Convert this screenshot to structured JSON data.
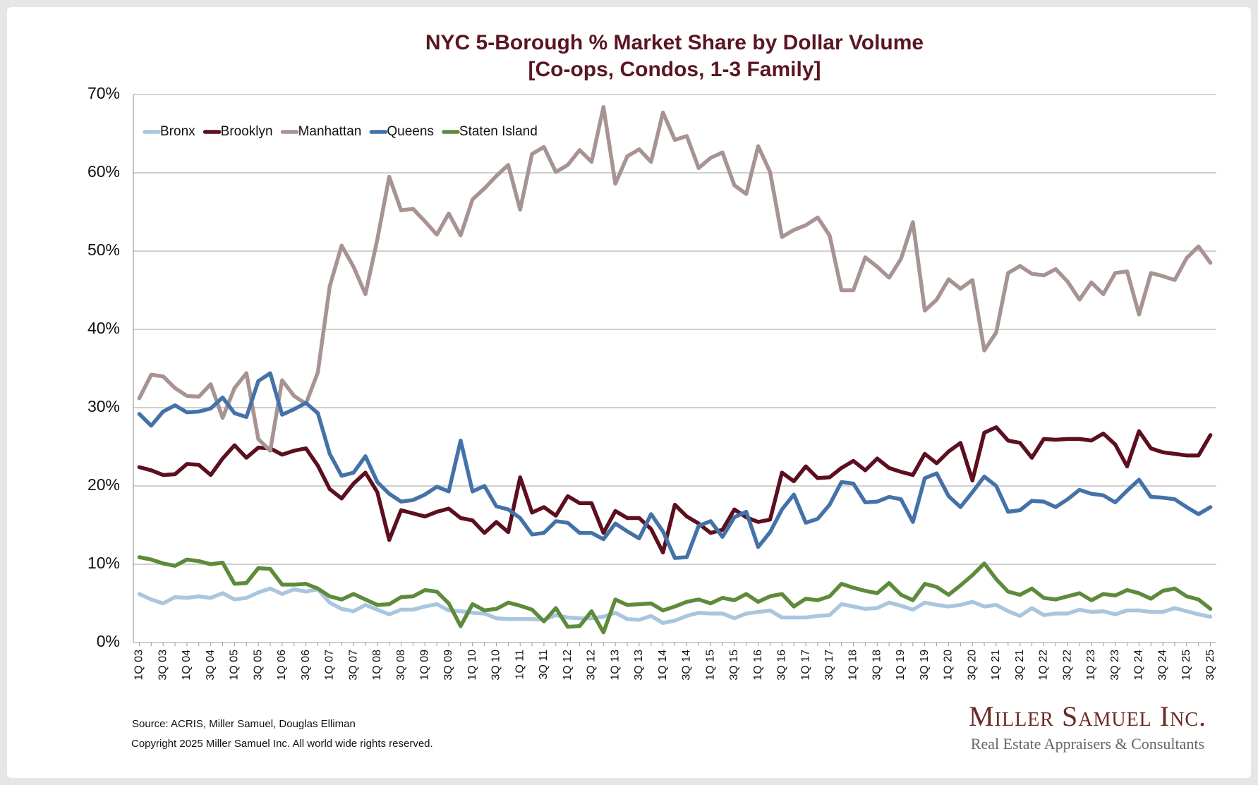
{
  "chart_data": {
    "type": "line",
    "title": "NYC 5-Borough % Market Share by Dollar Volume",
    "subtitle": "[Co-ops, Condos, 1-3 Family]",
    "categories": [
      "1Q 03",
      null,
      "3Q 03",
      null,
      "1Q 04",
      null,
      "3Q 04",
      null,
      "1Q 05",
      null,
      "3Q 05",
      null,
      "1Q 06",
      null,
      "3Q 06",
      null,
      "1Q 07",
      null,
      "3Q 07",
      null,
      "1Q 08",
      null,
      "3Q 08",
      null,
      "1Q 09",
      null,
      "3Q 09",
      null,
      "1Q 10",
      null,
      "3Q 10",
      null,
      "1Q 11",
      null,
      "3Q 11",
      null,
      "1Q 12",
      null,
      "3Q 12",
      null,
      "1Q 13",
      null,
      "3Q 13",
      null,
      "1Q 14",
      null,
      "3Q 14",
      null,
      "1Q 15",
      null,
      "3Q 15",
      null,
      "1Q 16",
      null,
      "3Q 16",
      null,
      "1Q 17",
      null,
      "3Q 17",
      null,
      "1Q 18",
      null,
      "3Q 18",
      null,
      "1Q 19",
      null,
      "3Q 19",
      null,
      "1Q 20",
      null,
      "3Q 20",
      null,
      "1Q 21",
      null,
      "3Q 21",
      null,
      "1Q 22",
      null,
      "3Q 22",
      null,
      "1Q 23",
      null,
      "3Q 23",
      null,
      "1Q 24",
      null,
      "3Q 24",
      null,
      "1Q 25",
      null,
      "3Q 25"
    ],
    "series": [
      {
        "name": "Bronx",
        "color": "#a9c6de",
        "values": [
          6.2,
          5.5,
          5.0,
          5.8,
          5.7,
          5.9,
          5.7,
          6.3,
          5.5,
          5.7,
          6.4,
          6.9,
          6.2,
          6.8,
          6.5,
          6.8,
          5.1,
          4.3,
          4.0,
          4.8,
          4.2,
          3.6,
          4.2,
          4.2,
          4.6,
          4.9,
          4.1,
          4.0,
          3.8,
          3.7,
          3.1,
          3.0,
          3.0,
          3.0,
          2.9,
          3.5,
          3.2,
          3.1,
          3.1,
          3.3,
          3.8,
          3.0,
          2.9,
          3.4,
          2.5,
          2.8,
          3.4,
          3.8,
          3.7,
          3.7,
          3.1,
          3.7,
          3.9,
          4.1,
          3.2,
          3.2,
          3.2,
          3.4,
          3.5,
          4.9,
          4.6,
          4.3,
          4.4,
          5.1,
          4.7,
          4.2,
          5.1,
          4.8,
          4.6,
          4.8,
          5.2,
          4.6,
          4.8,
          4.0,
          3.4,
          4.4,
          3.5,
          3.7,
          3.7,
          4.2,
          3.9,
          4.0,
          3.6,
          4.1,
          4.1,
          3.9,
          3.9,
          4.4,
          4.0,
          3.6,
          3.3
        ]
      },
      {
        "name": "Brooklyn",
        "color": "#5c0f1e",
        "values": [
          22.4,
          22.0,
          21.4,
          21.5,
          22.8,
          22.7,
          21.4,
          23.5,
          25.2,
          23.6,
          24.9,
          24.8,
          24.0,
          24.5,
          24.8,
          22.6,
          19.6,
          18.4,
          20.3,
          21.7,
          19.2,
          13.1,
          16.9,
          16.5,
          16.1,
          16.7,
          17.1,
          15.9,
          15.6,
          14.0,
          15.4,
          14.1,
          21.1,
          16.6,
          17.3,
          16.2,
          18.7,
          17.8,
          17.8,
          14.0,
          16.8,
          15.9,
          15.9,
          14.5,
          11.5,
          17.6,
          16.1,
          15.2,
          14.0,
          14.4,
          17.0,
          16.0,
          15.4,
          15.7,
          21.7,
          20.6,
          22.5,
          21.0,
          21.1,
          22.3,
          23.2,
          22.0,
          23.5,
          22.3,
          21.8,
          21.4,
          24.1,
          22.9,
          24.4,
          25.5,
          20.7,
          26.8,
          27.5,
          25.8,
          25.5,
          23.6,
          26.0,
          25.9,
          26.0,
          26.0,
          25.8,
          26.7,
          25.3,
          22.5,
          27.0,
          24.8,
          24.3,
          24.1,
          23.9,
          23.9,
          26.5
        ]
      },
      {
        "name": "Manhattan",
        "color": "#a89393",
        "values": [
          31.2,
          34.2,
          34.0,
          32.5,
          31.5,
          31.4,
          33.0,
          28.7,
          32.5,
          34.4,
          26.0,
          24.5,
          33.5,
          31.5,
          30.5,
          34.5,
          45.5,
          50.7,
          48.0,
          44.5,
          51.5,
          59.5,
          55.2,
          55.4,
          53.8,
          52.1,
          54.8,
          52.0,
          56.6,
          58.0,
          59.6,
          61.0,
          55.3,
          62.4,
          63.3,
          60.1,
          61.0,
          62.9,
          61.4,
          68.4,
          58.6,
          62.1,
          63.0,
          61.4,
          67.7,
          64.2,
          64.7,
          60.6,
          61.9,
          62.6,
          58.4,
          57.3,
          63.4,
          60.1,
          51.8,
          52.7,
          53.3,
          54.3,
          52.0,
          45.0,
          45.0,
          49.2,
          48.0,
          46.6,
          49.0,
          53.7,
          42.4,
          43.8,
          46.4,
          45.2,
          46.3,
          37.3,
          39.6,
          47.2,
          48.1,
          47.1,
          46.9,
          47.7,
          46.1,
          43.8,
          46.0,
          44.5,
          47.2,
          47.4,
          41.9,
          47.2,
          46.8,
          46.3,
          49.1,
          50.6,
          48.5
        ]
      },
      {
        "name": "Queens",
        "color": "#4472a8",
        "values": [
          29.2,
          27.7,
          29.5,
          30.3,
          29.4,
          29.5,
          29.9,
          31.3,
          29.3,
          28.8,
          33.4,
          34.4,
          29.1,
          29.8,
          30.6,
          29.3,
          24.1,
          21.3,
          21.7,
          23.8,
          20.5,
          19.0,
          18.0,
          18.2,
          18.9,
          19.9,
          19.3,
          25.8,
          19.3,
          20.0,
          17.4,
          17.0,
          15.9,
          13.8,
          14.0,
          15.5,
          15.3,
          14.0,
          14.0,
          13.2,
          15.2,
          14.2,
          13.3,
          16.4,
          14.2,
          10.8,
          10.9,
          14.9,
          15.5,
          13.5,
          16.0,
          16.7,
          12.2,
          14.1,
          17.0,
          18.9,
          15.3,
          15.8,
          17.6,
          20.5,
          20.3,
          17.9,
          18.0,
          18.6,
          18.3,
          15.4,
          21.0,
          21.6,
          18.7,
          17.3,
          19.2,
          21.2,
          20.0,
          16.7,
          16.9,
          18.1,
          18.0,
          17.3,
          18.3,
          19.5,
          19.0,
          18.8,
          17.9,
          19.4,
          20.8,
          18.6,
          18.5,
          18.3,
          17.3,
          16.4,
          17.3
        ]
      },
      {
        "name": "Staten Island",
        "color": "#5e8b3b",
        "values": [
          10.9,
          10.6,
          10.1,
          9.8,
          10.6,
          10.4,
          10.0,
          10.2,
          7.5,
          7.6,
          9.5,
          9.4,
          7.4,
          7.4,
          7.5,
          6.9,
          5.9,
          5.5,
          6.2,
          5.5,
          4.8,
          4.9,
          5.8,
          5.9,
          6.7,
          6.5,
          5.0,
          2.1,
          4.9,
          4.1,
          4.3,
          5.1,
          4.7,
          4.2,
          2.7,
          4.4,
          2.0,
          2.1,
          4.0,
          1.3,
          5.5,
          4.8,
          4.9,
          5.0,
          4.1,
          4.6,
          5.2,
          5.5,
          5.0,
          5.7,
          5.4,
          6.2,
          5.2,
          5.9,
          6.2,
          4.6,
          5.6,
          5.4,
          5.9,
          7.5,
          7.0,
          6.6,
          6.3,
          7.6,
          6.1,
          5.4,
          7.5,
          7.1,
          6.1,
          7.3,
          8.6,
          10.1,
          8.1,
          6.5,
          6.1,
          6.9,
          5.7,
          5.5,
          5.9,
          6.3,
          5.4,
          6.2,
          6.0,
          6.7,
          6.3,
          5.6,
          6.6,
          6.9,
          5.9,
          5.5,
          4.3
        ]
      }
    ],
    "ylim": [
      0,
      70
    ],
    "yticks": [
      {
        "value": 0,
        "label": "0%"
      },
      {
        "value": 10,
        "label": "10%"
      },
      {
        "value": 20,
        "label": "20%"
      },
      {
        "value": 30,
        "label": "30%"
      },
      {
        "value": 40,
        "label": "40%"
      },
      {
        "value": 50,
        "label": "50%"
      },
      {
        "value": 60,
        "label": "60%"
      },
      {
        "value": 70,
        "label": "70%"
      }
    ],
    "grid": true,
    "legend": "top-left",
    "source": "Source: ACRIS, Miller Samuel, Douglas Elliman",
    "copyright": "Copyright 2025 Miller Samuel Inc.  All world wide rights reserved.",
    "logo": "Miller Samuel Inc.",
    "logo_tagline": "Real Estate Appraisers & Consultants"
  }
}
